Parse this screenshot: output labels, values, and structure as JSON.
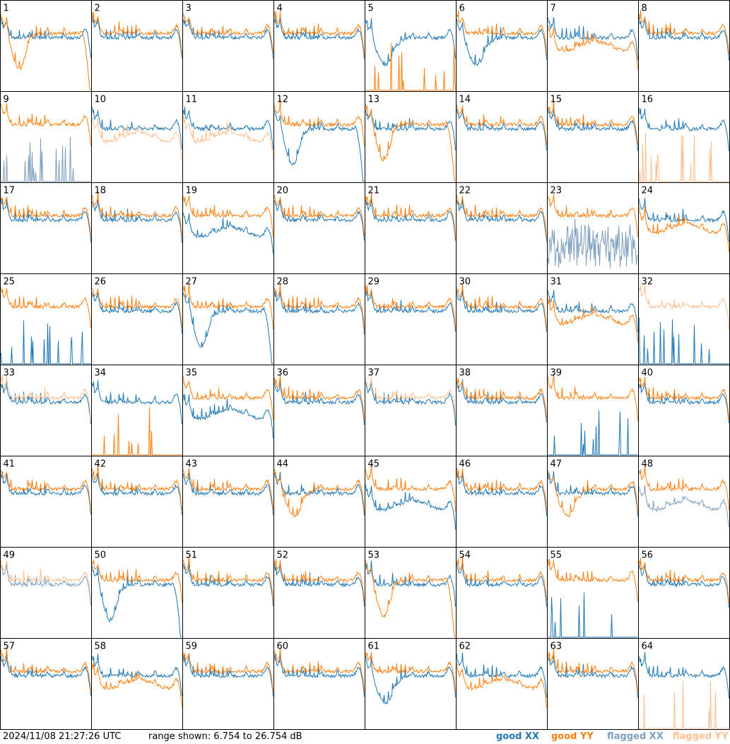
{
  "timestamp": "2024/11/08 21:27:26 UTC",
  "range_text": "range shown: 6.754 to 26.754 dB",
  "legend": [
    {
      "label": "good XX",
      "color": "#1f77b4"
    },
    {
      "label": "good YY",
      "color": "#ff7f0e"
    },
    {
      "label": "flagged XX",
      "color": "#7f9fbf"
    },
    {
      "label": "flagged YY",
      "color": "#ffbf8f"
    }
  ],
  "chart_data": {
    "type": "line",
    "panel_count": 64,
    "grid": "8x8",
    "y_range_db": [
      6.754,
      26.754
    ],
    "grid_lines": false,
    "panels": [
      {
        "id": "1",
        "xx": "good",
        "yy": "good",
        "pattern": "yy_dip_deep"
      },
      {
        "id": "2",
        "xx": "good",
        "yy": "good",
        "pattern": "normal"
      },
      {
        "id": "3",
        "xx": "good",
        "yy": "good",
        "pattern": "normal"
      },
      {
        "id": "4",
        "xx": "good",
        "yy": "good",
        "pattern": "normal"
      },
      {
        "id": "5",
        "xx": "good",
        "yy": "good",
        "pattern": "yy_dead_xx_dip"
      },
      {
        "id": "6",
        "xx": "good",
        "yy": "good",
        "pattern": "xx_dip"
      },
      {
        "id": "7",
        "xx": "good",
        "yy": "good",
        "pattern": "yy_low"
      },
      {
        "id": "8",
        "xx": "good",
        "yy": "good",
        "pattern": "normal"
      },
      {
        "id": "9",
        "xx": "flagged",
        "yy": "good",
        "pattern": "xx_dead"
      },
      {
        "id": "10",
        "xx": "good",
        "yy": "flagged",
        "pattern": "yy_low"
      },
      {
        "id": "11",
        "xx": "good",
        "yy": "flagged",
        "pattern": "yy_low"
      },
      {
        "id": "12",
        "xx": "good",
        "yy": "good",
        "pattern": "xx_dip_deep"
      },
      {
        "id": "13",
        "xx": "good",
        "yy": "good",
        "pattern": "yy_dip_deep"
      },
      {
        "id": "14",
        "xx": "good",
        "yy": "good",
        "pattern": "normal"
      },
      {
        "id": "15",
        "xx": "good",
        "yy": "good",
        "pattern": "normal"
      },
      {
        "id": "16",
        "xx": "good",
        "yy": "flagged",
        "pattern": "yy_dead"
      },
      {
        "id": "17",
        "xx": "good",
        "yy": "good",
        "pattern": "normal"
      },
      {
        "id": "18",
        "xx": "good",
        "yy": "good",
        "pattern": "normal"
      },
      {
        "id": "19",
        "xx": "good",
        "yy": "good",
        "pattern": "xx_low"
      },
      {
        "id": "20",
        "xx": "good",
        "yy": "good",
        "pattern": "normal"
      },
      {
        "id": "21",
        "xx": "good",
        "yy": "good",
        "pattern": "normal"
      },
      {
        "id": "22",
        "xx": "good",
        "yy": "good",
        "pattern": "normal"
      },
      {
        "id": "23",
        "xx": "flagged",
        "yy": "good",
        "pattern": "xx_noisy"
      },
      {
        "id": "24",
        "xx": "good",
        "yy": "good",
        "pattern": "yy_low"
      },
      {
        "id": "25",
        "xx": "good",
        "yy": "good",
        "pattern": "xx_dead"
      },
      {
        "id": "26",
        "xx": "good",
        "yy": "good",
        "pattern": "normal"
      },
      {
        "id": "27",
        "xx": "good",
        "yy": "good",
        "pattern": "xx_dip_deep"
      },
      {
        "id": "28",
        "xx": "good",
        "yy": "good",
        "pattern": "normal"
      },
      {
        "id": "29",
        "xx": "good",
        "yy": "good",
        "pattern": "normal"
      },
      {
        "id": "30",
        "xx": "good",
        "yy": "good",
        "pattern": "normal"
      },
      {
        "id": "31",
        "xx": "good",
        "yy": "good",
        "pattern": "yy_low"
      },
      {
        "id": "32",
        "xx": "good",
        "yy": "flagged",
        "pattern": "xx_dead"
      },
      {
        "id": "33",
        "xx": "good",
        "yy": "flagged",
        "pattern": "normal"
      },
      {
        "id": "34",
        "xx": "good",
        "yy": "good",
        "pattern": "yy_dead"
      },
      {
        "id": "35",
        "xx": "good",
        "yy": "good",
        "pattern": "xx_low"
      },
      {
        "id": "36",
        "xx": "good",
        "yy": "good",
        "pattern": "normal"
      },
      {
        "id": "37",
        "xx": "good",
        "yy": "flagged",
        "pattern": "normal"
      },
      {
        "id": "38",
        "xx": "good",
        "yy": "good",
        "pattern": "normal"
      },
      {
        "id": "39",
        "xx": "good",
        "yy": "good",
        "pattern": "xx_dead"
      },
      {
        "id": "40",
        "xx": "good",
        "yy": "good",
        "pattern": "normal"
      },
      {
        "id": "41",
        "xx": "good",
        "yy": "good",
        "pattern": "normal"
      },
      {
        "id": "42",
        "xx": "good",
        "yy": "good",
        "pattern": "normal"
      },
      {
        "id": "43",
        "xx": "good",
        "yy": "good",
        "pattern": "normal"
      },
      {
        "id": "44",
        "xx": "good",
        "yy": "good",
        "pattern": "yy_dip"
      },
      {
        "id": "45",
        "xx": "good",
        "yy": "good",
        "pattern": "xx_low"
      },
      {
        "id": "46",
        "xx": "good",
        "yy": "good",
        "pattern": "normal"
      },
      {
        "id": "47",
        "xx": "good",
        "yy": "good",
        "pattern": "yy_dip"
      },
      {
        "id": "48",
        "xx": "flagged",
        "yy": "good",
        "pattern": "xx_low"
      },
      {
        "id": "49",
        "xx": "flagged",
        "yy": "flagged",
        "pattern": "normal"
      },
      {
        "id": "50",
        "xx": "good",
        "yy": "good",
        "pattern": "xx_dip_deep"
      },
      {
        "id": "51",
        "xx": "good",
        "yy": "good",
        "pattern": "normal"
      },
      {
        "id": "52",
        "xx": "good",
        "yy": "good",
        "pattern": "normal"
      },
      {
        "id": "53",
        "xx": "good",
        "yy": "good",
        "pattern": "yy_dip_deep"
      },
      {
        "id": "54",
        "xx": "good",
        "yy": "good",
        "pattern": "normal"
      },
      {
        "id": "55",
        "xx": "good",
        "yy": "good",
        "pattern": "xx_dead"
      },
      {
        "id": "56",
        "xx": "good",
        "yy": "good",
        "pattern": "normal"
      },
      {
        "id": "57",
        "xx": "good",
        "yy": "good",
        "pattern": "normal"
      },
      {
        "id": "58",
        "xx": "good",
        "yy": "good",
        "pattern": "yy_low"
      },
      {
        "id": "59",
        "xx": "good",
        "yy": "good",
        "pattern": "normal"
      },
      {
        "id": "60",
        "xx": "good",
        "yy": "good",
        "pattern": "normal"
      },
      {
        "id": "61",
        "xx": "good",
        "yy": "good",
        "pattern": "xx_dip"
      },
      {
        "id": "62",
        "xx": "good",
        "yy": "good",
        "pattern": "yy_low"
      },
      {
        "id": "63",
        "xx": "good",
        "yy": "good",
        "pattern": "normal"
      },
      {
        "id": "64",
        "xx": "good",
        "yy": "flagged",
        "pattern": "yy_dead"
      }
    ]
  }
}
